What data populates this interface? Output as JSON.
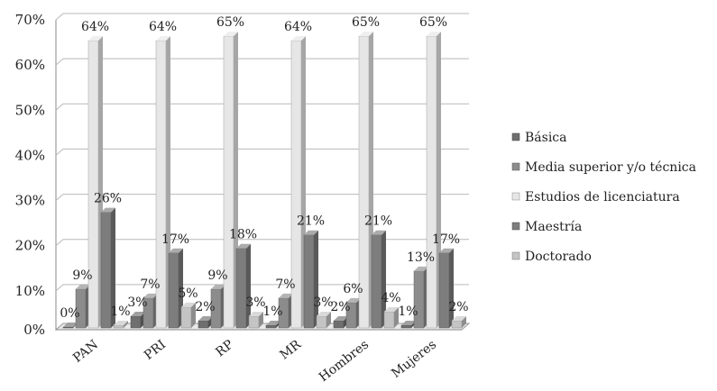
{
  "chart_data": {
    "type": "bar",
    "style": "3d-clustered-column",
    "categories": [
      "PAN",
      "PRI",
      "RP",
      "MR",
      "Hombres",
      "Mujeres"
    ],
    "series": [
      {
        "name": "Básica",
        "values": [
          0,
          3,
          2,
          1,
          2,
          1
        ],
        "labels": [
          "0%",
          "3%",
          "2%",
          "1%",
          "2%",
          "1%"
        ],
        "color": "#6f6f6f"
      },
      {
        "name": "Media superior y/o técnica",
        "values": [
          9,
          7,
          9,
          7,
          6,
          13
        ],
        "labels": [
          "9%",
          "7%",
          "9%",
          "7%",
          "6%",
          "13%"
        ],
        "color": "#8c8c8c"
      },
      {
        "name": "Estudios de licenciatura",
        "values": [
          64,
          64,
          65,
          64,
          65,
          65
        ],
        "labels": [
          "64%",
          "64%",
          "65%",
          "64%",
          "65%",
          "65%"
        ],
        "color": "#e6e6e6"
      },
      {
        "name": "Maestría",
        "values": [
          26,
          17,
          18,
          21,
          21,
          17
        ],
        "labels": [
          "26%",
          "17%",
          "18%",
          "21%",
          "21%",
          "17%"
        ],
        "color": "#7d7d7d"
      },
      {
        "name": "Doctorado",
        "values": [
          1,
          5,
          3,
          3,
          4,
          2
        ],
        "labels": [
          "1%",
          "5%",
          "3%",
          "3%",
          "4%",
          "2%"
        ],
        "color": "#c4c4c4"
      }
    ],
    "ylim": [
      0,
      70
    ],
    "yticks": [
      "0%",
      "10%",
      "20%",
      "30%",
      "40%",
      "50%",
      "60%",
      "70%"
    ],
    "grid": true,
    "legend_position": "right"
  }
}
